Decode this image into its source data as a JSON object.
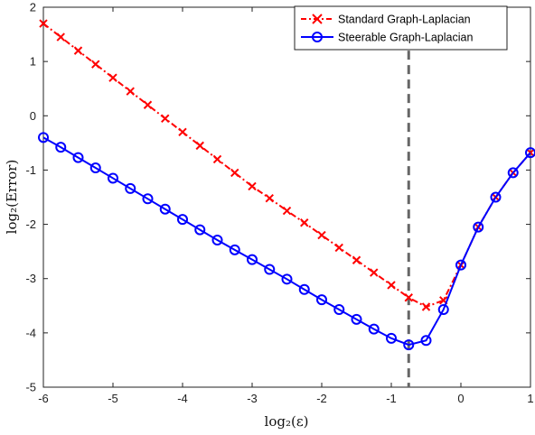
{
  "chart_data": {
    "type": "line",
    "title": "",
    "xlabel": "log₂(ε)",
    "ylabel": "log₂(Error)",
    "xlim": [
      -6,
      1
    ],
    "ylim": [
      -5,
      2
    ],
    "xticks": [
      "-6",
      "-5",
      "-4",
      "-3",
      "-2",
      "-1",
      "0",
      "1"
    ],
    "yticks": [
      "2",
      "1",
      "0",
      "-1",
      "-2",
      "-3",
      "-4",
      "-5"
    ],
    "grid": false,
    "legend_position": "top-right",
    "vertical_reference_line": {
      "x": -0.75,
      "style": "dashed",
      "color": "#666666"
    },
    "series": [
      {
        "name": "Standard Graph-Laplacian",
        "color": "#ff0000",
        "line_style": "dash-dot",
        "marker": "x",
        "x": [
          -6,
          -5.75,
          -5.5,
          -5.25,
          -5,
          -4.75,
          -4.5,
          -4.25,
          -4,
          -3.75,
          -3.5,
          -3.25,
          -3,
          -2.75,
          -2.5,
          -2.25,
          -2,
          -1.75,
          -1.5,
          -1.25,
          -1,
          -0.75,
          -0.5,
          -0.25,
          0,
          0.25,
          0.5,
          0.75,
          1
        ],
        "y": [
          1.7,
          1.45,
          1.2,
          0.95,
          0.7,
          0.45,
          0.2,
          -0.05,
          -0.3,
          -0.55,
          -0.8,
          -1.05,
          -1.3,
          -1.52,
          -1.75,
          -1.97,
          -2.2,
          -2.43,
          -2.66,
          -2.89,
          -3.12,
          -3.35,
          -3.52,
          -3.4,
          -2.75,
          -2.05,
          -1.5,
          -1.05,
          -0.68
        ]
      },
      {
        "name": "Steerable Graph-Laplacian",
        "color": "#0000ff",
        "line_style": "solid",
        "marker": "o",
        "x": [
          -6,
          -5.75,
          -5.5,
          -5.25,
          -5,
          -4.75,
          -4.5,
          -4.25,
          -4,
          -3.75,
          -3.5,
          -3.25,
          -3,
          -2.75,
          -2.5,
          -2.25,
          -2,
          -1.75,
          -1.5,
          -1.25,
          -1,
          -0.75,
          -0.5,
          -0.25,
          0,
          0.25,
          0.5,
          0.75,
          1
        ],
        "y": [
          -0.4,
          -0.58,
          -0.77,
          -0.96,
          -1.15,
          -1.34,
          -1.53,
          -1.72,
          -1.91,
          -2.1,
          -2.29,
          -2.47,
          -2.65,
          -2.83,
          -3.01,
          -3.2,
          -3.39,
          -3.57,
          -3.75,
          -3.93,
          -4.1,
          -4.22,
          -4.14,
          -3.57,
          -2.75,
          -2.05,
          -1.5,
          -1.05,
          -0.68
        ]
      }
    ]
  }
}
